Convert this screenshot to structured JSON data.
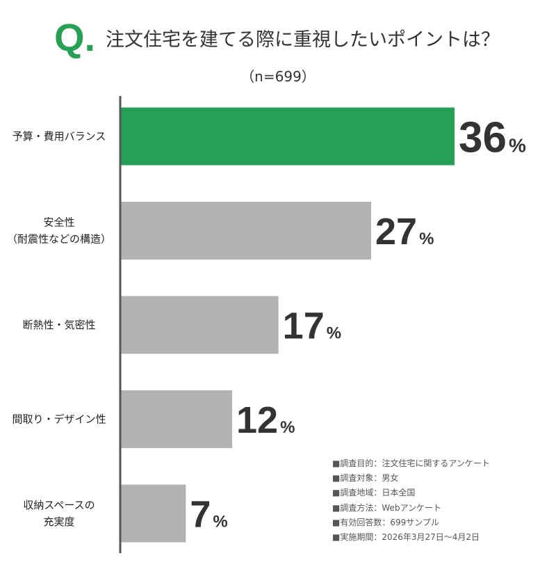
{
  "header": {
    "q_mark": "Q.",
    "title": "注文住宅を建てる際に重視したいポイントは？",
    "sample": "（n=699）"
  },
  "colors": {
    "highlight": "#27a055",
    "bar": "#b3b3b3",
    "axis": "#555555"
  },
  "chart_data": {
    "type": "bar",
    "orientation": "horizontal",
    "title": "注文住宅を建てる際に重視したいポイントは？",
    "subtitle": "（n=699）",
    "categories": [
      [
        "予算・費用バランス"
      ],
      [
        "安全性",
        "（耐震性などの構造）"
      ],
      [
        "断熱性・気密性"
      ],
      [
        "間取り・デザイン性"
      ],
      [
        "収納スペースの",
        "充実度"
      ]
    ],
    "values": [
      36,
      27,
      17,
      12,
      7
    ],
    "unit": "%",
    "highlight_index": 0,
    "xlim": [
      0,
      36
    ],
    "grid": false,
    "legend": "none"
  },
  "notes": [
    "■調査目的：注文住宅に関するアンケート",
    "■調査対象：男女",
    "■調査地域：日本全国",
    "■調査方法：Webアンケート",
    "■有効回答数：699サンプル",
    "■実施期間：2026年3月27日～4月2日"
  ]
}
